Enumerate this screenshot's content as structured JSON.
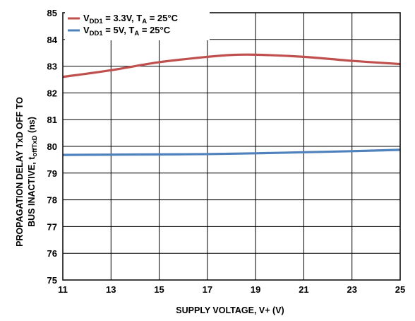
{
  "chart_data": {
    "type": "line",
    "xlabel": "SUPPLY VOLTAGE, V+ (V)",
    "ylabel": {
      "line1": "PROPAGATION DELAY TxD OFF TO",
      "line2_prefix": "BUS INACTIVE, t",
      "line2_sub": "offTxD",
      "line2_suffix": " (ns)"
    },
    "xlim": [
      11,
      25
    ],
    "ylim": [
      75,
      85
    ],
    "xticks": [
      "11",
      "13",
      "15",
      "17",
      "19",
      "21",
      "23",
      "25"
    ],
    "yticks": [
      "75",
      "76",
      "77",
      "78",
      "79",
      "80",
      "81",
      "82",
      "83",
      "84",
      "85"
    ],
    "grid": true,
    "legend_position": "top-left",
    "series": [
      {
        "name": "VDD1 = 3.3V, TA = 25°C",
        "legend": {
          "v": "V",
          "vsub": "DD1",
          "mid": " = 3.3V, T",
          "tsub": "A",
          "end": " = 25°C"
        },
        "color": "#c0504d",
        "x": [
          11,
          13,
          15,
          17,
          18,
          19,
          21,
          23,
          25
        ],
        "y": [
          82.6,
          82.85,
          83.15,
          83.35,
          83.42,
          83.43,
          83.35,
          83.2,
          83.08
        ]
      },
      {
        "name": "VDD1 = 5V, TA = 25°C",
        "legend": {
          "v": "V",
          "vsub": "DD1",
          "mid": " = 5V, T",
          "tsub": "A",
          "end": " = 25°C"
        },
        "color": "#4f81bd",
        "x": [
          11,
          13,
          15,
          17,
          19,
          21,
          23,
          25
        ],
        "y": [
          79.68,
          79.69,
          79.7,
          79.71,
          79.74,
          79.78,
          79.82,
          79.87
        ]
      }
    ]
  }
}
